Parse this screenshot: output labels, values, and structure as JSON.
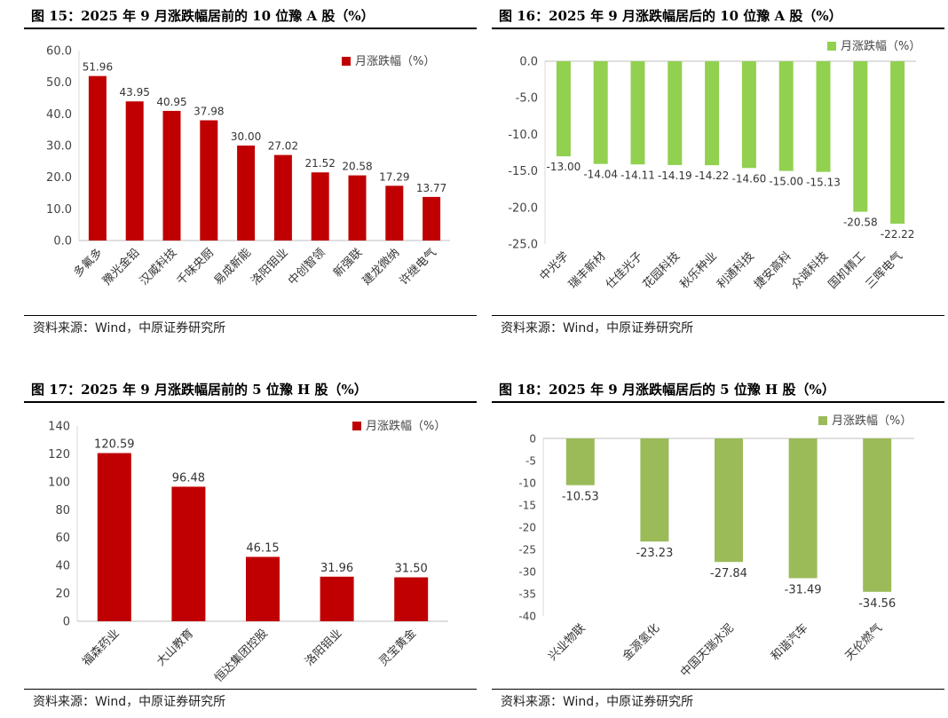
{
  "source_text": "资料来源：Wind，中原证券研究所",
  "chart_data": [
    {
      "id": "fig15",
      "type": "bar",
      "title": "图 15：2025 年 9 月涨跌幅居前的 10 位豫 A 股（%）",
      "legend": "月涨跌幅（%）",
      "legend_position": "top-right",
      "color": "#C00000",
      "categories": [
        "多氟多",
        "豫光金铅",
        "汉威科技",
        "千味央厨",
        "易成新能",
        "洛阳钼业",
        "中创智领",
        "新强联",
        "建龙微纳",
        "许继电气"
      ],
      "values": [
        51.96,
        43.95,
        40.95,
        37.98,
        30.0,
        27.02,
        21.52,
        20.58,
        17.29,
        13.77
      ],
      "value_labels": [
        "51.96",
        "43.95",
        "40.95",
        "37.98",
        "30.00",
        "27.02",
        "21.52",
        "20.58",
        "17.29",
        "13.77"
      ],
      "yticks": [
        "0.0",
        "10.0",
        "20.0",
        "30.0",
        "40.0",
        "50.0",
        "60.0"
      ],
      "ylim": [
        0,
        60
      ],
      "ystep": 10
    },
    {
      "id": "fig16",
      "type": "bar",
      "title": "图 16：2025 年 9 月涨跌幅居后的 10 位豫 A 股（%）",
      "legend": "月涨跌幅（%）",
      "legend_position": "top-right",
      "color": "#92D050",
      "categories": [
        "中光学",
        "瑞丰新材",
        "仕佳光子",
        "花园科技",
        "秋乐种业",
        "利通科技",
        "捷安高科",
        "众诚科技",
        "国机精工",
        "三晖电气"
      ],
      "values": [
        -13.0,
        -14.04,
        -14.11,
        -14.19,
        -14.22,
        -14.6,
        -15.0,
        -15.13,
        -20.58,
        -22.22
      ],
      "value_labels": [
        "-13.00",
        "-14.04",
        "-14.11",
        "-14.19",
        "-14.22",
        "-14.60",
        "-15.00",
        "-15.13",
        "-20.58",
        "-22.22"
      ],
      "yticks": [
        "0.0",
        "-5.0",
        "-10.0",
        "-15.0",
        "-20.0",
        "-25.0"
      ],
      "ylim": [
        -25,
        0
      ],
      "ystep": 5
    },
    {
      "id": "fig17",
      "type": "bar",
      "title": "图 17：2025 年 9 月涨跌幅居前的 5 位豫 H 股（%）",
      "legend": "月涨跌幅（%）",
      "legend_position": "top-right",
      "color": "#C00000",
      "categories": [
        "福森药业",
        "大山教育",
        "恒达集团控股",
        "洛阳钼业",
        "灵宝黄金"
      ],
      "values": [
        120.59,
        96.48,
        46.15,
        31.96,
        31.5
      ],
      "value_labels": [
        "120.59",
        "96.48",
        "46.15",
        "31.96",
        "31.50"
      ],
      "yticks": [
        "0",
        "20",
        "40",
        "60",
        "80",
        "100",
        "120",
        "140"
      ],
      "ylim": [
        0,
        140
      ],
      "ystep": 20
    },
    {
      "id": "fig18",
      "type": "bar",
      "title": "图 18：2025 年 9 月涨跌幅居后的 5 位豫 H 股（%）",
      "legend": "月涨跌幅（%）",
      "legend_position": "top-right",
      "color": "#9BBB59",
      "categories": [
        "兴业物联",
        "金源氢化",
        "中国天瑞水泥",
        "和谐汽车",
        "天伦燃气"
      ],
      "values": [
        -10.53,
        -23.23,
        -27.84,
        -31.49,
        -34.56
      ],
      "value_labels": [
        "-10.53",
        "-23.23",
        "-27.84",
        "-31.49",
        "-34.56"
      ],
      "yticks": [
        "0",
        "-5",
        "-10",
        "-15",
        "-20",
        "-25",
        "-30",
        "-35",
        "-40"
      ],
      "ylim": [
        -40,
        0
      ],
      "ystep": 5
    }
  ]
}
